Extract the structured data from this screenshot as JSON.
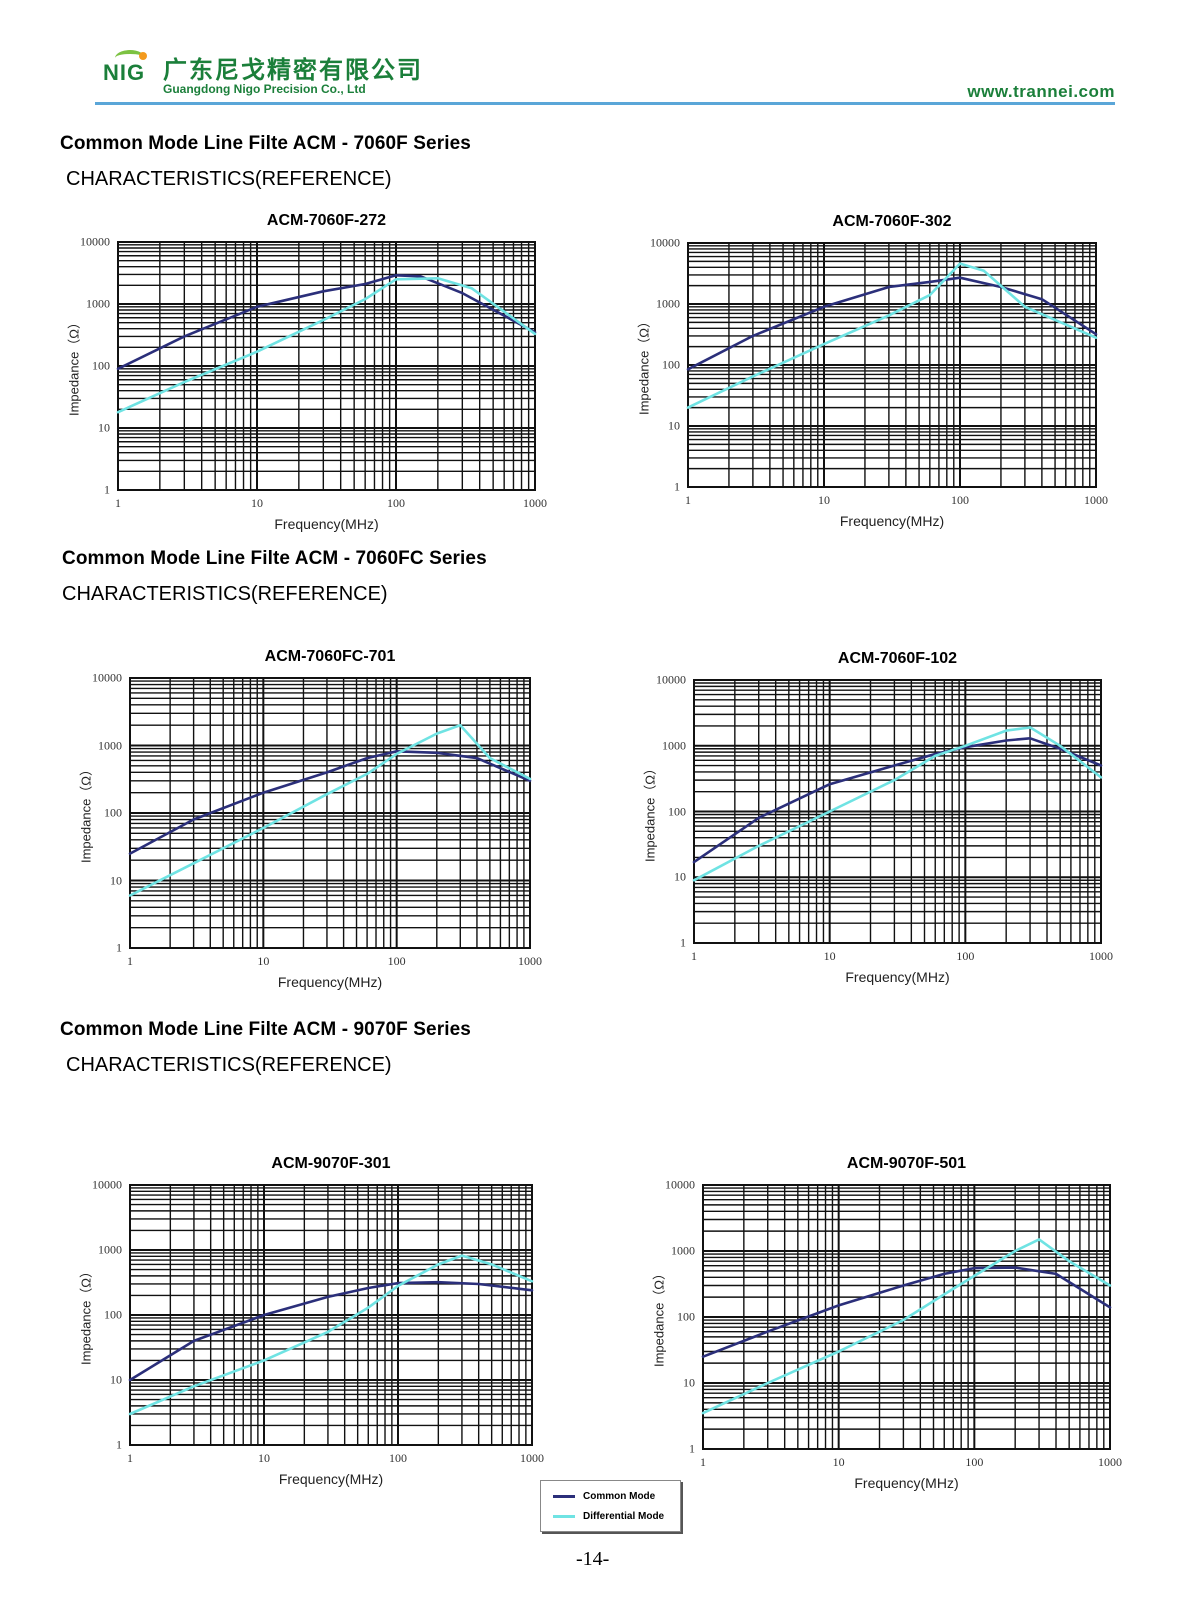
{
  "header": {
    "logo_text": "NIG",
    "company_cn": "广东尼戈精密有限公司",
    "company_en": "Guangdong Nigo Precision Co., Ltd",
    "website": "www.trannei.com",
    "accent_color": "#1b7f3a",
    "rule_color": "#5aa6d8"
  },
  "sections": [
    {
      "title": "Common Mode Line Filte ACM - 7060F Series",
      "subtitle": "CHARACTERISTICS(REFERENCE)"
    },
    {
      "title": "Common Mode Line Filte ACM - 7060FC Series",
      "subtitle": "CHARACTERISTICS(REFERENCE)"
    },
    {
      "title": "Common Mode Line Filte ACM - 9070F Series",
      "subtitle": "CHARACTERISTICS(REFERENCE)"
    }
  ],
  "legend": {
    "common_mode": "Common Mode",
    "differential_mode": "Differential Mode",
    "common_color": "#2b2f7a",
    "differential_color": "#6fe3e3"
  },
  "page_number": "-14-",
  "chart_data": [
    {
      "type": "line",
      "title": "ACM-7060F-272",
      "xlabel": "Frequency(MHz)",
      "ylabel": "Impedance（Ω）",
      "xscale": "log",
      "yscale": "log",
      "xlim": [
        1,
        1000
      ],
      "ylim": [
        1,
        10000
      ],
      "x_ticks": [
        "1",
        "10",
        "100",
        "1000"
      ],
      "y_ticks": [
        "1",
        "10",
        "100",
        "1000",
        "10000"
      ],
      "grid": true,
      "series": [
        {
          "name": "Common Mode",
          "x": [
            1,
            3,
            10,
            30,
            60,
            100,
            150,
            300,
            1000
          ],
          "y": [
            90,
            300,
            900,
            1600,
            2100,
            2900,
            2800,
            1500,
            350
          ]
        },
        {
          "name": "Differential Mode",
          "x": [
            1,
            3,
            10,
            30,
            60,
            100,
            200,
            350,
            1000
          ],
          "y": [
            18,
            55,
            170,
            550,
            1200,
            2500,
            2600,
            1800,
            330
          ]
        }
      ]
    },
    {
      "type": "line",
      "title": "ACM-7060F-302",
      "xlabel": "Frequency(MHz)",
      "ylabel": "Impedance（Ω）",
      "xscale": "log",
      "yscale": "log",
      "xlim": [
        1,
        1000
      ],
      "ylim": [
        1,
        10000
      ],
      "x_ticks": [
        "1",
        "10",
        "100",
        "1000"
      ],
      "y_ticks": [
        "1",
        "10",
        "100",
        "1000",
        "10000"
      ],
      "grid": true,
      "series": [
        {
          "name": "Common Mode",
          "x": [
            1,
            3,
            10,
            30,
            60,
            100,
            200,
            400,
            1000
          ],
          "y": [
            85,
            300,
            900,
            1900,
            2300,
            2700,
            1900,
            1200,
            320
          ]
        },
        {
          "name": "Differential Mode",
          "x": [
            1,
            3,
            10,
            30,
            60,
            100,
            150,
            300,
            1000
          ],
          "y": [
            20,
            65,
            220,
            650,
            1400,
            4600,
            3500,
            900,
            280
          ]
        }
      ]
    },
    {
      "type": "line",
      "title": "ACM-7060FC-701",
      "xlabel": "Frequency(MHz)",
      "ylabel": "Impedance（Ω）",
      "xscale": "log",
      "yscale": "log",
      "xlim": [
        1,
        1000
      ],
      "ylim": [
        1,
        10000
      ],
      "x_ticks": [
        "1",
        "10",
        "100",
        "1000"
      ],
      "y_ticks": [
        "1",
        "10",
        "100",
        "1000",
        "10000"
      ],
      "grid": true,
      "series": [
        {
          "name": "Common Mode",
          "x": [
            1,
            3,
            10,
            30,
            60,
            100,
            200,
            400,
            1000
          ],
          "y": [
            25,
            80,
            200,
            400,
            650,
            820,
            780,
            650,
            300
          ]
        },
        {
          "name": "Differential Mode",
          "x": [
            1,
            3,
            10,
            30,
            60,
            100,
            200,
            300,
            500,
            1000
          ],
          "y": [
            6,
            18,
            60,
            190,
            380,
            750,
            1500,
            2000,
            650,
            320
          ]
        }
      ]
    },
    {
      "type": "line",
      "title": "ACM-7060F-102",
      "xlabel": "Frequency(MHz)",
      "ylabel": "Impedance（Ω）",
      "xscale": "log",
      "yscale": "log",
      "xlim": [
        1,
        1000
      ],
      "ylim": [
        1,
        10000
      ],
      "x_ticks": [
        "1",
        "10",
        "100",
        "1000"
      ],
      "y_ticks": [
        "1",
        "10",
        "100",
        "1000",
        "10000"
      ],
      "grid": true,
      "series": [
        {
          "name": "Common Mode",
          "x": [
            1,
            3,
            10,
            30,
            60,
            100,
            200,
            300,
            500,
            1000
          ],
          "y": [
            17,
            80,
            260,
            500,
            750,
            950,
            1200,
            1300,
            900,
            500
          ]
        },
        {
          "name": "Differential Mode",
          "x": [
            1,
            3,
            10,
            30,
            60,
            100,
            200,
            300,
            500,
            1000
          ],
          "y": [
            9,
            30,
            100,
            300,
            700,
            1000,
            1700,
            1900,
            1000,
            330
          ]
        }
      ]
    },
    {
      "type": "line",
      "title": "ACM-9070F-301",
      "xlabel": "Frequency(MHz)",
      "ylabel": "Impedance（Ω）",
      "xscale": "log",
      "yscale": "log",
      "xlim": [
        1,
        1000
      ],
      "ylim": [
        1,
        10000
      ],
      "x_ticks": [
        "1",
        "10",
        "100",
        "1000"
      ],
      "y_ticks": [
        "1",
        "10",
        "100",
        "1000",
        "10000"
      ],
      "grid": true,
      "series": [
        {
          "name": "Common Mode",
          "x": [
            1,
            3,
            10,
            30,
            60,
            100,
            200,
            400,
            1000
          ],
          "y": [
            10,
            40,
            100,
            190,
            260,
            310,
            320,
            300,
            240
          ]
        },
        {
          "name": "Differential Mode",
          "x": [
            1,
            3,
            10,
            30,
            60,
            100,
            200,
            300,
            500,
            1000
          ],
          "y": [
            3,
            8,
            20,
            55,
            130,
            280,
            600,
            820,
            600,
            330
          ]
        }
      ]
    },
    {
      "type": "line",
      "title": "ACM-9070F-501",
      "xlabel": "Frequency(MHz)",
      "ylabel": "Impedance（Ω）",
      "xscale": "log",
      "yscale": "log",
      "xlim": [
        1,
        1000
      ],
      "ylim": [
        1,
        10000
      ],
      "x_ticks": [
        "1",
        "10",
        "100",
        "1000"
      ],
      "y_ticks": [
        "1",
        "10",
        "100",
        "1000",
        "10000"
      ],
      "grid": true,
      "series": [
        {
          "name": "Common Mode",
          "x": [
            1,
            3,
            10,
            30,
            60,
            100,
            200,
            400,
            1000
          ],
          "y": [
            25,
            60,
            150,
            300,
            450,
            550,
            560,
            450,
            140
          ]
        },
        {
          "name": "Differential Mode",
          "x": [
            1,
            3,
            10,
            30,
            60,
            100,
            200,
            300,
            500,
            1000
          ],
          "y": [
            3.5,
            10,
            30,
            90,
            220,
            420,
            1000,
            1500,
            700,
            300
          ]
        }
      ]
    }
  ]
}
